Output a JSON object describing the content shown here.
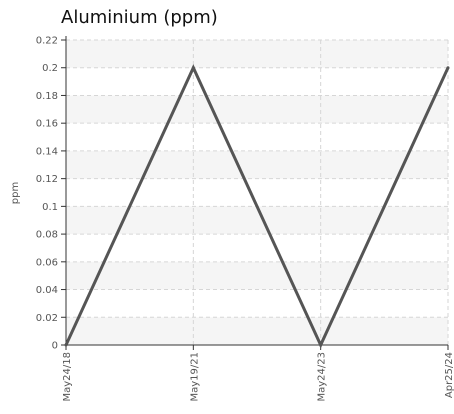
{
  "chart_data": {
    "type": "line",
    "title": "Aluminium (ppm)",
    "ylabel": "ppm",
    "xlabel": "",
    "categories": [
      "May24/18",
      "May19/21",
      "May24/23",
      "Apr25/24"
    ],
    "series": [
      {
        "values": [
          0,
          0.2,
          0,
          0.2
        ]
      }
    ],
    "ylim": [
      0,
      0.22
    ],
    "yticks": [
      "0",
      "0.02",
      "0.04",
      "0.06",
      "0.08",
      "0.1",
      "0.12",
      "0.14",
      "0.16",
      "0.18",
      "0.2",
      "0.22"
    ],
    "grid": true,
    "legend": "none",
    "colors": {
      "line": "#555555",
      "band": "#f5f5f5",
      "grid": "#d6d6d6",
      "axis": "#333333"
    }
  }
}
